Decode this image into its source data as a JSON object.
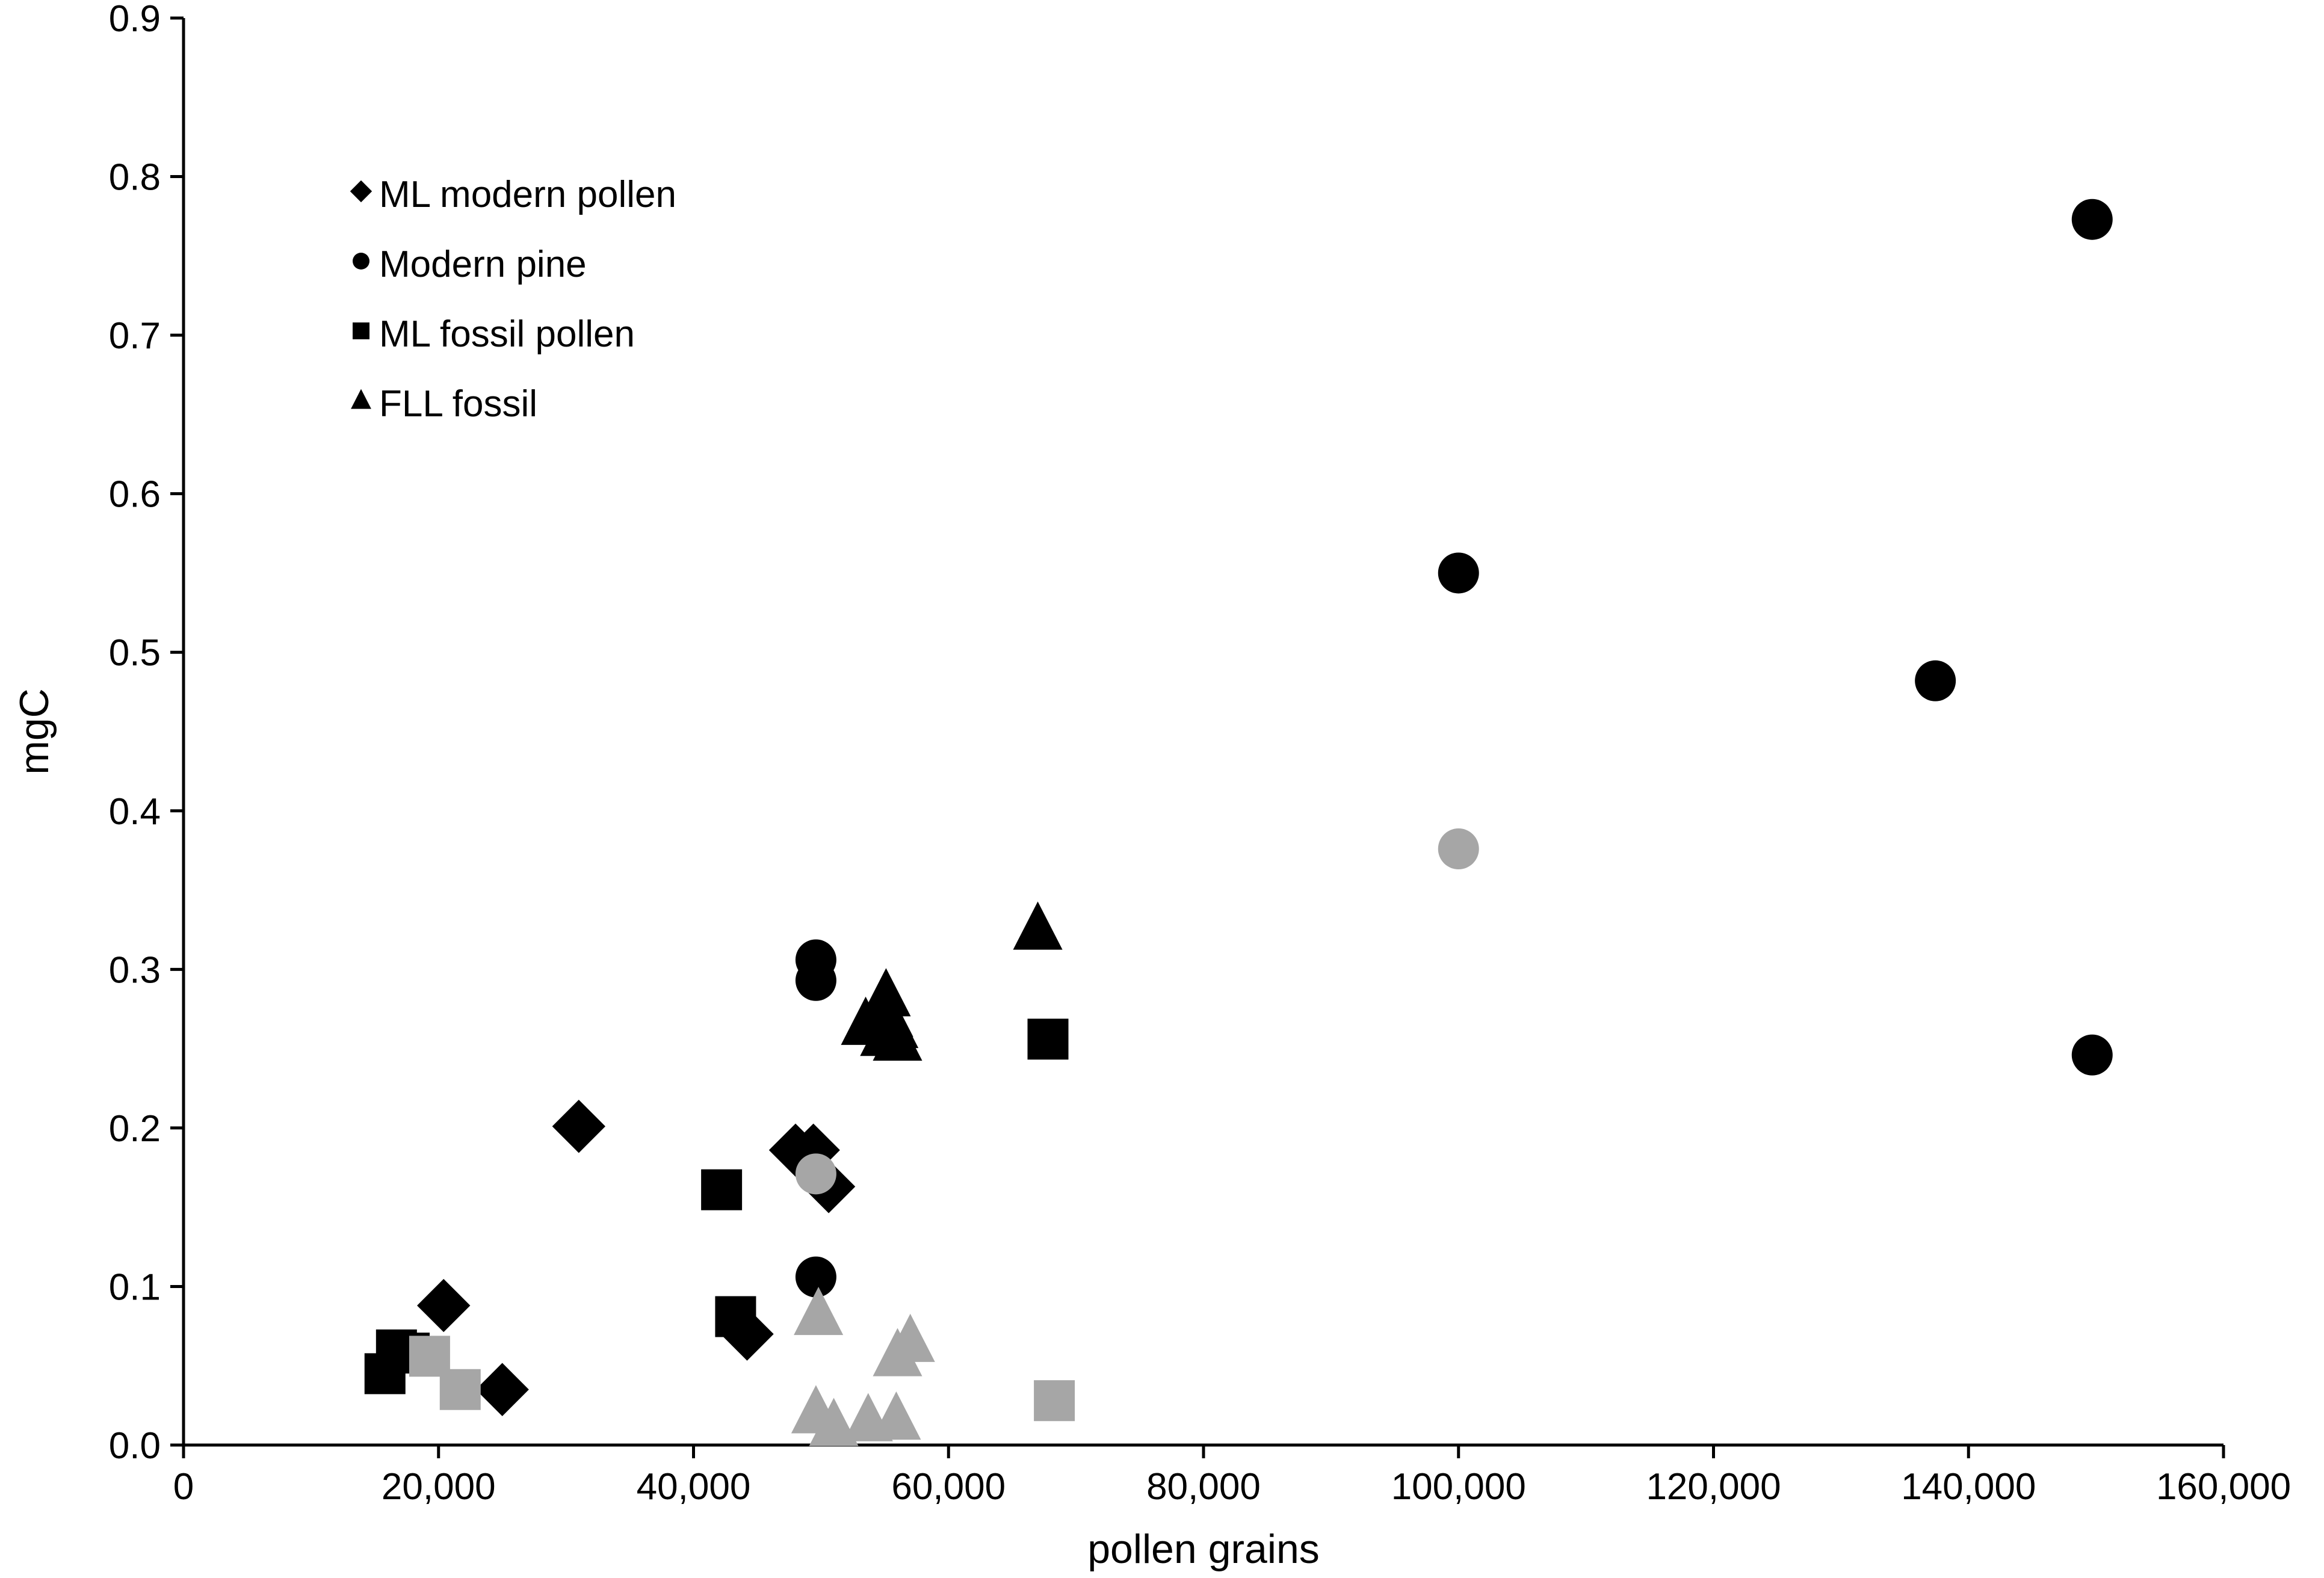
{
  "chart_data": {
    "type": "scatter",
    "title": "",
    "xlabel": "pollen grains",
    "ylabel": "mgC",
    "xlim": [
      0,
      160000
    ],
    "ylim": [
      0,
      0.9
    ],
    "x_ticks": [
      0,
      20000,
      40000,
      60000,
      80000,
      100000,
      120000,
      140000,
      160000
    ],
    "x_tick_labels": [
      "0",
      "20,000",
      "40,000",
      "60,000",
      "80,000",
      "100,000",
      "120,000",
      "140,000",
      "160,000"
    ],
    "y_ticks": [
      0,
      0.1,
      0.2,
      0.3,
      0.4,
      0.5,
      0.6,
      0.7,
      0.8,
      0.9
    ],
    "y_tick_labels": [
      "0.0",
      "0.1",
      "0.2",
      "0.3",
      "0.4",
      "0.5",
      "0.6",
      "0.7",
      "0.8",
      "0.9"
    ],
    "grid": false,
    "legend_position": "top-left",
    "colors": {
      "primary": "#000000",
      "secondary": "#a6a6a6"
    },
    "series": [
      {
        "name": "ML modern pollen",
        "marker": "diamond",
        "points": [
          {
            "x": 20400,
            "y": 0.088,
            "color": "#000000"
          },
          {
            "x": 25000,
            "y": 0.035,
            "color": "#000000"
          },
          {
            "x": 31000,
            "y": 0.201,
            "color": "#000000"
          },
          {
            "x": 44200,
            "y": 0.07,
            "color": "#000000"
          },
          {
            "x": 48000,
            "y": 0.186,
            "color": "#000000"
          },
          {
            "x": 49400,
            "y": 0.186,
            "color": "#000000"
          },
          {
            "x": 50600,
            "y": 0.163,
            "color": "#000000"
          }
        ]
      },
      {
        "name": "Modern pine",
        "marker": "circle",
        "points": [
          {
            "x": 49600,
            "y": 0.306,
            "color": "#000000"
          },
          {
            "x": 49600,
            "y": 0.293,
            "color": "#000000"
          },
          {
            "x": 49600,
            "y": 0.106,
            "color": "#000000"
          },
          {
            "x": 49600,
            "y": 0.171,
            "color": "#a6a6a6"
          },
          {
            "x": 100000,
            "y": 0.55,
            "color": "#000000"
          },
          {
            "x": 100000,
            "y": 0.376,
            "color": "#a6a6a6"
          },
          {
            "x": 137400,
            "y": 0.482,
            "color": "#000000"
          },
          {
            "x": 149700,
            "y": 0.773,
            "color": "#000000"
          },
          {
            "x": 149700,
            "y": 0.246,
            "color": "#000000"
          }
        ]
      },
      {
        "name": "ML fossil pollen",
        "marker": "square",
        "points": [
          {
            "x": 15800,
            "y": 0.045,
            "color": "#000000"
          },
          {
            "x": 16700,
            "y": 0.06,
            "color": "#000000"
          },
          {
            "x": 17700,
            "y": 0.058,
            "color": "#000000"
          },
          {
            "x": 19300,
            "y": 0.056,
            "color": "#a6a6a6"
          },
          {
            "x": 21700,
            "y": 0.035,
            "color": "#a6a6a6"
          },
          {
            "x": 42200,
            "y": 0.161,
            "color": "#000000"
          },
          {
            "x": 43300,
            "y": 0.081,
            "color": "#000000"
          },
          {
            "x": 67800,
            "y": 0.256,
            "color": "#000000"
          },
          {
            "x": 68300,
            "y": 0.028,
            "color": "#a6a6a6"
          }
        ]
      },
      {
        "name": "FLL fossil",
        "marker": "triangle",
        "points": [
          {
            "x": 53500,
            "y": 0.265,
            "color": "#000000"
          },
          {
            "x": 55100,
            "y": 0.283,
            "color": "#000000"
          },
          {
            "x": 55300,
            "y": 0.27,
            "color": "#000000"
          },
          {
            "x": 55700,
            "y": 0.263,
            "color": "#000000"
          },
          {
            "x": 55000,
            "y": 0.258,
            "color": "#000000"
          },
          {
            "x": 56000,
            "y": 0.255,
            "color": "#000000"
          },
          {
            "x": 67000,
            "y": 0.325,
            "color": "#000000"
          },
          {
            "x": 49800,
            "y": 0.082,
            "color": "#a6a6a6"
          },
          {
            "x": 49600,
            "y": 0.02,
            "color": "#a6a6a6"
          },
          {
            "x": 51000,
            "y": 0.012,
            "color": "#a6a6a6"
          },
          {
            "x": 53700,
            "y": 0.015,
            "color": "#a6a6a6"
          },
          {
            "x": 55900,
            "y": 0.016,
            "color": "#a6a6a6"
          },
          {
            "x": 56000,
            "y": 0.056,
            "color": "#a6a6a6"
          },
          {
            "x": 57000,
            "y": 0.065,
            "color": "#a6a6a6"
          }
        ]
      }
    ]
  }
}
